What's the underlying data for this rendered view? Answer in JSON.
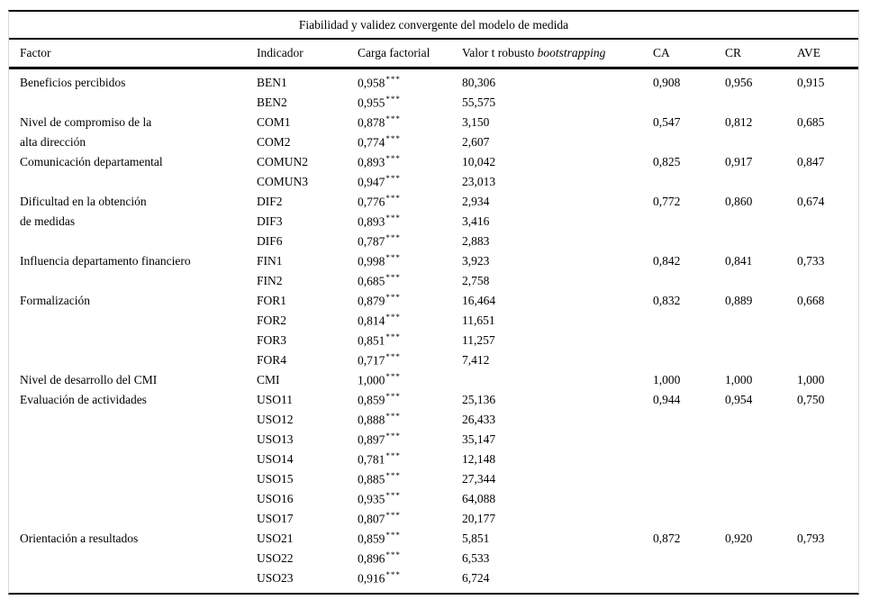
{
  "table": {
    "title": "Fiabilidad y validez convergente del modelo de medida",
    "headers": {
      "factor": "Factor",
      "indicador": "Indicador",
      "carga": "Carga factorial",
      "valor_t_prefix": "Valor t robusto ",
      "valor_t_italic": "bootstrapping",
      "ca": "CA",
      "cr": "CR",
      "ave": "AVE"
    },
    "rows": [
      {
        "factor": "Beneficios percibidos",
        "indicador": "BEN1",
        "carga": "0,958",
        "sig": "***",
        "valor_t": "80,306",
        "ca": "0,908",
        "cr": "0,956",
        "ave": "0,915"
      },
      {
        "factor": "",
        "indicador": "BEN2",
        "carga": "0,955",
        "sig": "***",
        "valor_t": "55,575",
        "ca": "",
        "cr": "",
        "ave": ""
      },
      {
        "factor": "Nivel de compromiso de la",
        "indicador": "COM1",
        "carga": "0,878",
        "sig": "***",
        "valor_t": "3,150",
        "ca": "0,547",
        "cr": "0,812",
        "ave": "0,685"
      },
      {
        "factor": "alta dirección",
        "indicador": "COM2",
        "carga": "0,774",
        "sig": "***",
        "valor_t": "2,607",
        "ca": "",
        "cr": "",
        "ave": ""
      },
      {
        "factor": "Comunicación departamental",
        "indicador": "COMUN2",
        "carga": "0,893",
        "sig": "***",
        "valor_t": "10,042",
        "ca": "0,825",
        "cr": "0,917",
        "ave": "0,847"
      },
      {
        "factor": "",
        "indicador": "COMUN3",
        "carga": "0,947",
        "sig": "***",
        "valor_t": "23,013",
        "ca": "",
        "cr": "",
        "ave": ""
      },
      {
        "factor": "Dificultad en la obtención",
        "indicador": "DIF2",
        "carga": "0,776",
        "sig": "***",
        "valor_t": "2,934",
        "ca": "0,772",
        "cr": "0,860",
        "ave": "0,674"
      },
      {
        "factor": "de medidas",
        "indicador": "DIF3",
        "carga": "0,893",
        "sig": "***",
        "valor_t": "3,416",
        "ca": "",
        "cr": "",
        "ave": ""
      },
      {
        "factor": "",
        "indicador": "DIF6",
        "carga": "0,787",
        "sig": "***",
        "valor_t": "2,883",
        "ca": "",
        "cr": "",
        "ave": ""
      },
      {
        "factor": "Influencia departamento financiero",
        "indicador": "FIN1",
        "carga": "0,998",
        "sig": "***",
        "valor_t": "3,923",
        "ca": "0,842",
        "cr": "0,841",
        "ave": "0,733"
      },
      {
        "factor": "",
        "indicador": "FIN2",
        "carga": "0,685",
        "sig": "***",
        "valor_t": "2,758",
        "ca": "",
        "cr": "",
        "ave": ""
      },
      {
        "factor": "Formalización",
        "indicador": "FOR1",
        "carga": "0,879",
        "sig": "***",
        "valor_t": "16,464",
        "ca": "0,832",
        "cr": "0,889",
        "ave": "0,668"
      },
      {
        "factor": "",
        "indicador": "FOR2",
        "carga": "0,814",
        "sig": "***",
        "valor_t": "11,651",
        "ca": "",
        "cr": "",
        "ave": ""
      },
      {
        "factor": "",
        "indicador": "FOR3",
        "carga": "0,851",
        "sig": "***",
        "valor_t": "11,257",
        "ca": "",
        "cr": "",
        "ave": ""
      },
      {
        "factor": "",
        "indicador": "FOR4",
        "carga": "0,717",
        "sig": "***",
        "valor_t": "7,412",
        "ca": "",
        "cr": "",
        "ave": ""
      },
      {
        "factor": "Nivel de desarrollo del CMI",
        "indicador": "CMI",
        "carga": "1,000",
        "sig": "***",
        "valor_t": "",
        "ca": "1,000",
        "cr": "1,000",
        "ave": "1,000"
      },
      {
        "factor": "Evaluación de actividades",
        "indicador": "USO11",
        "carga": "0,859",
        "sig": "***",
        "valor_t": "25,136",
        "ca": "0,944",
        "cr": "0,954",
        "ave": "0,750"
      },
      {
        "factor": "",
        "indicador": "USO12",
        "carga": "0,888",
        "sig": "***",
        "valor_t": "26,433",
        "ca": "",
        "cr": "",
        "ave": ""
      },
      {
        "factor": "",
        "indicador": "USO13",
        "carga": "0,897",
        "sig": "***",
        "valor_t": "35,147",
        "ca": "",
        "cr": "",
        "ave": ""
      },
      {
        "factor": "",
        "indicador": "USO14",
        "carga": "0,781",
        "sig": "***",
        "valor_t": "12,148",
        "ca": "",
        "cr": "",
        "ave": ""
      },
      {
        "factor": "",
        "indicador": "USO15",
        "carga": "0,885",
        "sig": "***",
        "valor_t": "27,344",
        "ca": "",
        "cr": "",
        "ave": ""
      },
      {
        "factor": "",
        "indicador": "USO16",
        "carga": "0,935",
        "sig": "***",
        "valor_t": "64,088",
        "ca": "",
        "cr": "",
        "ave": ""
      },
      {
        "factor": "",
        "indicador": "USO17",
        "carga": "0,807",
        "sig": "***",
        "valor_t": "20,177",
        "ca": "",
        "cr": "",
        "ave": ""
      },
      {
        "factor": "Orientación a resultados",
        "indicador": "USO21",
        "carga": "0,859",
        "sig": "***",
        "valor_t": "5,851",
        "ca": "0,872",
        "cr": "0,920",
        "ave": "0,793"
      },
      {
        "factor": "",
        "indicador": "USO22",
        "carga": "0,896",
        "sig": "***",
        "valor_t": "6,533",
        "ca": "",
        "cr": "",
        "ave": ""
      },
      {
        "factor": "",
        "indicador": "USO23",
        "carga": "0,916",
        "sig": "***",
        "valor_t": "6,724",
        "ca": "",
        "cr": "",
        "ave": ""
      }
    ]
  }
}
